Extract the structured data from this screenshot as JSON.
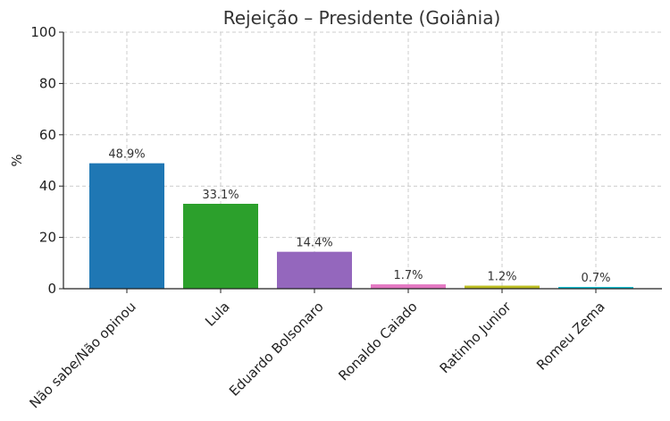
{
  "chart_data": {
    "type": "bar",
    "title": "Rejeição – Presidente (Goiânia)",
    "xlabel": "",
    "ylabel": "%",
    "ylim": [
      0,
      100
    ],
    "yticks": [
      0,
      20,
      40,
      60,
      80,
      100
    ],
    "grid": true,
    "categories": [
      "Não sabe/Não opinou",
      "Lula",
      "Eduardo Bolsonaro",
      "Ronaldo Caiado",
      "Ratinho Junior",
      "Romeu Zema"
    ],
    "values": [
      48.9,
      33.1,
      14.4,
      1.7,
      1.2,
      0.7
    ],
    "data_labels": [
      "48.9%",
      "33.1%",
      "14.4%",
      "1.7%",
      "1.2%",
      "0.7%"
    ],
    "colors": [
      "#1f77b4",
      "#2ca02c",
      "#9467bd",
      "#e377c2",
      "#bcbd22",
      "#17becf"
    ]
  }
}
